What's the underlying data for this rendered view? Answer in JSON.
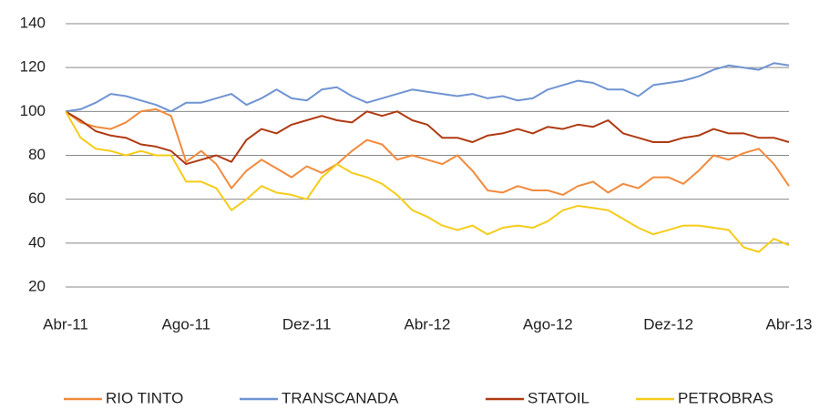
{
  "chart_data": {
    "type": "line",
    "categories": [
      "Abr-11",
      null,
      null,
      null,
      null,
      null,
      null,
      null,
      "Ago-11",
      null,
      null,
      null,
      null,
      null,
      null,
      null,
      "Dez-11",
      null,
      null,
      null,
      null,
      null,
      null,
      null,
      "Abr-12",
      null,
      null,
      null,
      null,
      null,
      null,
      null,
      "Ago-12",
      null,
      null,
      null,
      null,
      null,
      null,
      null,
      "Dez-12",
      null,
      null,
      null,
      null,
      null,
      null,
      null,
      "Abr-13"
    ],
    "series": [
      {
        "name": "RIO TINTO",
        "color": "#f28a3c",
        "values": [
          100,
          95,
          93,
          92,
          95,
          100,
          101,
          98,
          77,
          82,
          76,
          65,
          73,
          78,
          74,
          70,
          75,
          72,
          76,
          82,
          87,
          85,
          78,
          80,
          78,
          76,
          80,
          73,
          64,
          63,
          66,
          64,
          64,
          62,
          66,
          68,
          63,
          67,
          65,
          70,
          70,
          67,
          73,
          80,
          78,
          81,
          83,
          76,
          66
        ]
      },
      {
        "name": "TRANSCANADA",
        "color": "#6f94d2",
        "values": [
          100,
          101,
          104,
          108,
          107,
          105,
          103,
          100,
          104,
          104,
          106,
          108,
          103,
          106,
          110,
          106,
          105,
          110,
          111,
          107,
          104,
          106,
          108,
          110,
          109,
          108,
          107,
          108,
          106,
          107,
          105,
          106,
          110,
          112,
          114,
          113,
          110,
          110,
          107,
          112,
          113,
          114,
          116,
          119,
          121,
          120,
          119,
          122,
          121
        ]
      },
      {
        "name": "STATOIL",
        "color": "#b03a12",
        "values": [
          100,
          96,
          91,
          89,
          88,
          85,
          84,
          82,
          76,
          78,
          80,
          77,
          87,
          92,
          90,
          94,
          96,
          98,
          96,
          95,
          100,
          98,
          100,
          96,
          94,
          88,
          88,
          86,
          89,
          90,
          92,
          90,
          93,
          92,
          94,
          93,
          96,
          90,
          88,
          86,
          86,
          88,
          89,
          92,
          90,
          90,
          88,
          88,
          86
        ]
      },
      {
        "name": "PETROBRAS",
        "color": "#f5cc19",
        "values": [
          100,
          88,
          83,
          82,
          80,
          82,
          80,
          80,
          68,
          68,
          65,
          55,
          60,
          66,
          63,
          62,
          60,
          70,
          76,
          72,
          70,
          67,
          62,
          55,
          52,
          48,
          46,
          48,
          44,
          47,
          48,
          47,
          50,
          55,
          57,
          56,
          55,
          51,
          47,
          44,
          46,
          48,
          48,
          47,
          46,
          38,
          36,
          42,
          39
        ]
      }
    ],
    "ylim": [
      20,
      140
    ],
    "yticks": [
      20,
      40,
      60,
      80,
      100,
      120,
      140
    ],
    "grid": true
  }
}
